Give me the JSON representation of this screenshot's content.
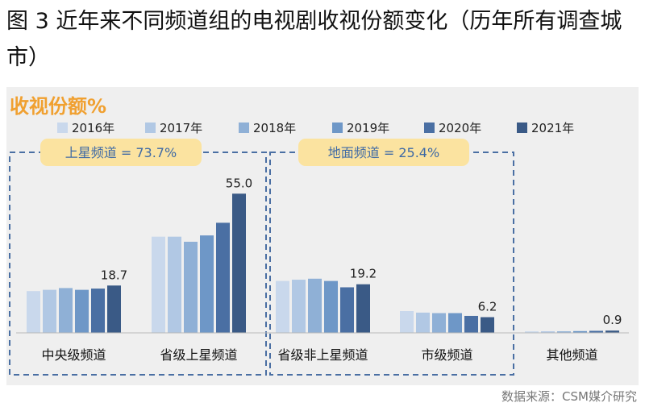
{
  "figure": {
    "title": "图 3 近年来不同频道组的电视剧收视份额变化（历年所有调查城市）",
    "source": "数据来源：CSM媒介研究"
  },
  "chart_data": {
    "type": "bar",
    "title": "收视份额%",
    "categories": [
      "中央级频道",
      "省级上星频道",
      "省级非上星频道",
      "市级频道",
      "其他频道"
    ],
    "series": [
      {
        "name": "2016年",
        "color": "#c9d8ec",
        "values": [
          16.5,
          38.0,
          20.5,
          8.6,
          0.6
        ]
      },
      {
        "name": "2017年",
        "color": "#b1c8e4",
        "values": [
          17.0,
          38.0,
          21.0,
          8.0,
          0.6
        ]
      },
      {
        "name": "2018年",
        "color": "#8fb0d6",
        "values": [
          17.7,
          36.0,
          21.4,
          7.8,
          0.6
        ]
      },
      {
        "name": "2019年",
        "color": "#6e97c7",
        "values": [
          17.0,
          38.5,
          20.5,
          7.8,
          0.7
        ]
      },
      {
        "name": "2020年",
        "color": "#4a6fa3",
        "values": [
          17.5,
          43.5,
          18.0,
          6.7,
          0.8
        ]
      },
      {
        "name": "2021年",
        "color": "#3a5a86",
        "values": [
          18.7,
          55.0,
          19.2,
          6.2,
          0.9
        ]
      }
    ],
    "data_labels": [
      {
        "category_index": 0,
        "series_index": 5,
        "text": "18.7"
      },
      {
        "category_index": 1,
        "series_index": 5,
        "text": "55.0"
      },
      {
        "category_index": 2,
        "series_index": 5,
        "text": "19.2"
      },
      {
        "category_index": 3,
        "series_index": 5,
        "text": "6.2"
      },
      {
        "category_index": 4,
        "series_index": 5,
        "text": "0.9"
      }
    ],
    "ylim": [
      0,
      60
    ],
    "grid": false,
    "legend_position": "top",
    "annotations": [
      {
        "text": "上星频道 = 73.7%",
        "categories": [
          0,
          1
        ]
      },
      {
        "text": "地面频道 = 25.4%",
        "categories": [
          2,
          3
        ]
      }
    ],
    "colors": {
      "panel_background": "#efefef",
      "title_accent": "#f0a030",
      "group_box_border": "#4a6fa3",
      "annotation_fill": "#fbe3a0"
    }
  }
}
